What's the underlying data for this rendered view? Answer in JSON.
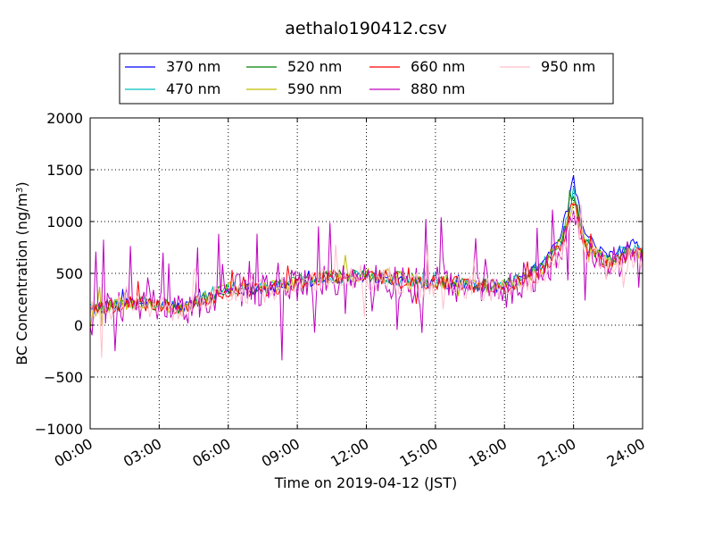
{
  "chart_data": {
    "type": "line",
    "title": "aethalo190412.csv",
    "xlabel": "Time on 2019-04-12 (JST)",
    "ylabel": "BC Concentration (ng/m³)",
    "ylabel_parts": {
      "main": "BC Concentration (ng/m",
      "sup": "3",
      "close": ")"
    },
    "xlim": [
      0,
      24
    ],
    "ylim": [
      -1000,
      2000
    ],
    "x_ticks": [
      0,
      3,
      6,
      9,
      12,
      15,
      18,
      21,
      24
    ],
    "x_tick_labels": [
      "00:00",
      "03:00",
      "06:00",
      "09:00",
      "12:00",
      "15:00",
      "18:00",
      "21:00",
      "24:00"
    ],
    "y_ticks": [
      -1000,
      -500,
      0,
      500,
      1000,
      1500,
      2000
    ],
    "y_tick_labels": [
      "−1000",
      "−500",
      "0",
      "500",
      "1000",
      "1500",
      "2000"
    ],
    "grid": true,
    "legend_position": "top-center, above plot",
    "sampling_interval_min": 5,
    "series": [
      {
        "name": "370 nm",
        "color": "#0000ff",
        "anchors_x": [
          0,
          2,
          4,
          6,
          8,
          10,
          12,
          14,
          16,
          18,
          19.5,
          20.5,
          21,
          21.5,
          22.5,
          23.5,
          24
        ],
        "anchors_y": [
          150,
          220,
          170,
          340,
          360,
          440,
          470,
          420,
          400,
          360,
          580,
          900,
          1400,
          850,
          650,
          780,
          750
        ],
        "noise": 55,
        "spike_p": 0.02,
        "spike_amp": 150
      },
      {
        "name": "470 nm",
        "color": "#00bfbf",
        "anchors_x": [
          0,
          2,
          4,
          6,
          8,
          10,
          12,
          14,
          16,
          18,
          19.5,
          20.5,
          21,
          21.5,
          22.5,
          23.5,
          24
        ],
        "anchors_y": [
          160,
          230,
          175,
          360,
          370,
          450,
          470,
          430,
          410,
          370,
          560,
          850,
          1300,
          820,
          620,
          760,
          720
        ],
        "noise": 60,
        "spike_p": 0.02,
        "spike_amp": 150
      },
      {
        "name": "520 nm",
        "color": "#008000",
        "anchors_x": [
          0,
          2,
          4,
          6,
          8,
          10,
          12,
          14,
          16,
          18,
          19.5,
          20.5,
          21,
          21.5,
          22.5,
          23.5,
          24
        ],
        "anchors_y": [
          155,
          225,
          170,
          350,
          370,
          460,
          480,
          440,
          410,
          370,
          540,
          820,
          1260,
          800,
          600,
          740,
          700
        ],
        "noise": 65,
        "spike_p": 0.02,
        "spike_amp": 160
      },
      {
        "name": "590 nm",
        "color": "#bfbf00",
        "anchors_x": [
          0,
          2,
          4,
          6,
          8,
          10,
          12,
          14,
          16,
          18,
          19.5,
          20.5,
          21,
          21.5,
          22.5,
          23.5,
          24
        ],
        "anchors_y": [
          150,
          220,
          165,
          345,
          365,
          455,
          500,
          440,
          410,
          370,
          520,
          800,
          1230,
          780,
          590,
          720,
          690
        ],
        "noise": 75,
        "spike_p": 0.03,
        "spike_amp": 220
      },
      {
        "name": "660 nm",
        "color": "#ff0000",
        "anchors_x": [
          0,
          2,
          4,
          6,
          8,
          10,
          12,
          14,
          16,
          18,
          19.5,
          20.5,
          21,
          21.5,
          22.5,
          23.5,
          24
        ],
        "anchors_y": [
          145,
          215,
          165,
          340,
          360,
          450,
          480,
          435,
          400,
          360,
          500,
          780,
          1200,
          760,
          580,
          700,
          680
        ],
        "noise": 75,
        "spike_p": 0.03,
        "spike_amp": 220
      },
      {
        "name": "880 nm",
        "color": "#bf00bf",
        "anchors_x": [
          0,
          2,
          4,
          6,
          8,
          10,
          12,
          14,
          16,
          18,
          19.5,
          20.5,
          21,
          21.5,
          22.5,
          23.5,
          24
        ],
        "anchors_y": [
          150,
          200,
          160,
          330,
          350,
          420,
          460,
          400,
          390,
          330,
          470,
          720,
          1100,
          720,
          560,
          680,
          650
        ],
        "noise": 170,
        "spike_p": 0.14,
        "spike_amp": 650
      },
      {
        "name": "950 nm",
        "color": "#ffc0cb",
        "anchors_x": [
          0,
          2,
          4,
          6,
          8,
          10,
          12,
          14,
          16,
          18,
          19.5,
          20.5,
          21,
          21.5,
          22.5,
          23.5,
          24
        ],
        "anchors_y": [
          140,
          200,
          150,
          320,
          340,
          420,
          450,
          380,
          380,
          330,
          460,
          700,
          1050,
          700,
          540,
          660,
          640
        ],
        "noise": 120,
        "spike_p": 0.08,
        "spike_amp": 450
      }
    ]
  }
}
